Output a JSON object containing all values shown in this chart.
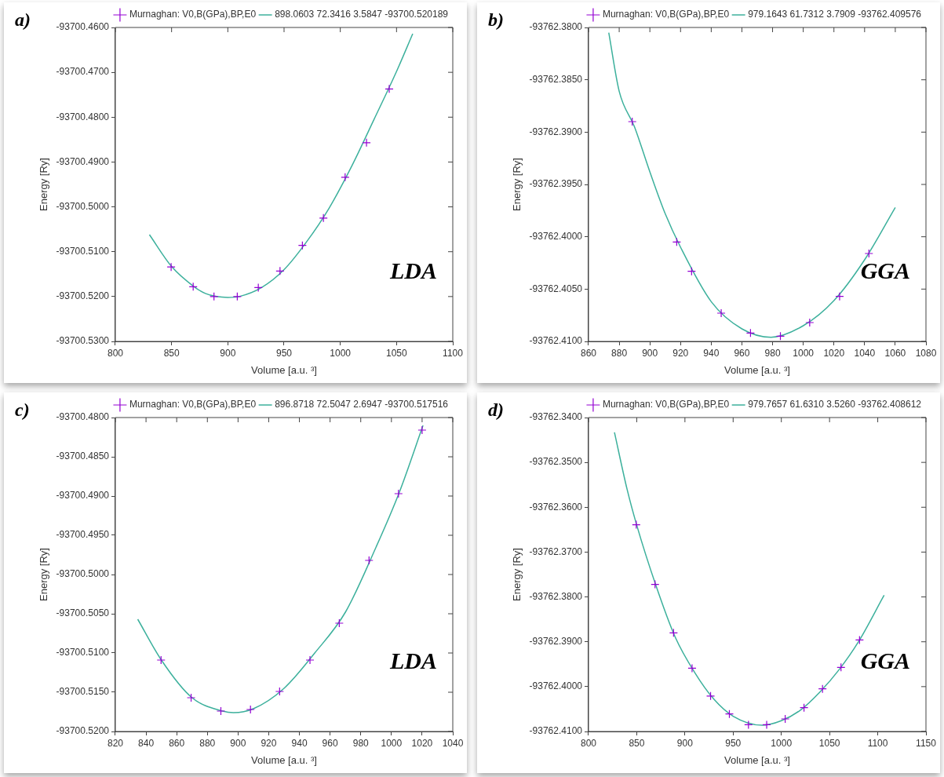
{
  "chart_data": [
    {
      "type": "scatter",
      "annotations": [
        "a)",
        "LDA"
      ],
      "xlabel": "Volume [a.u. ³]",
      "ylabel": "Energy [Ry]",
      "legend": "top right",
      "marker": "cross",
      "xlim": [
        800,
        1100
      ],
      "xticks": [
        800,
        850,
        900,
        950,
        1000,
        1050,
        1100
      ],
      "ylim": [
        -93700.53,
        -93700.46
      ],
      "yticks": [
        {
          "value": -93700.53,
          "label": "-93700.5300"
        },
        {
          "value": -93700.52,
          "label": "-93700.5200"
        },
        {
          "value": -93700.51,
          "label": "-93700.5100"
        },
        {
          "value": -93700.5,
          "label": "-93700.5000"
        },
        {
          "value": -93700.49,
          "label": "-93700.4900"
        },
        {
          "value": -93700.48,
          "label": "-93700.4800"
        },
        {
          "value": -93700.47,
          "label": "-93700.4700"
        },
        {
          "value": -93700.46,
          "label": "-93700.4600"
        }
      ],
      "series": [
        {
          "name": "Murnaghan: V0,B(GPa),BP,E0",
          "color": "#9400d3",
          "x": [
            849.6,
            869.2,
            887.7,
            908.4,
            927.1,
            946.4,
            966.3,
            985,
            1004.3,
            1023.3,
            1043.5
          ],
          "values": [
            -93700.5134,
            -93700.5178,
            -93700.52,
            -93700.52,
            -93700.518,
            -93700.5143,
            -93700.5086,
            -93700.5025,
            -93700.4934,
            -93700.4857,
            -93700.4737
          ]
        },
        {
          "type": "line",
          "marker": "none",
          "name": "898.0603 72.3416 3.5847 -93700.520189",
          "color": "#3cb09c",
          "x": [
            830.3,
            850,
            870,
            880,
            890,
            900,
            910,
            930,
            950,
            970,
            990,
            1010,
            1030,
            1050,
            1064.4
          ],
          "values": [
            -93700.5062,
            -93700.5133,
            -93700.5178,
            -93700.5193,
            -93700.52,
            -93700.5202,
            -93700.52,
            -93700.518,
            -93700.514,
            -93700.5078,
            -93700.5003,
            -93700.491,
            -93700.4805,
            -93700.4698,
            -93700.4614
          ]
        }
      ]
    },
    {
      "type": "scatter",
      "annotations": [
        "b)",
        "GGA"
      ],
      "xlabel": "Volume [a.u. ³]",
      "ylabel": "Energy [Ry]",
      "legend": "top right",
      "marker": "cross",
      "xlim": [
        860,
        1080
      ],
      "xticks": [
        860,
        880,
        900,
        920,
        940,
        960,
        980,
        1000,
        1020,
        1040,
        1060,
        1080
      ],
      "ylim": [
        -93762.41,
        -93762.38
      ],
      "yticks": [
        {
          "value": -93762.41,
          "label": "-93762.4100"
        },
        {
          "value": -93762.405,
          "label": "-93762.4050"
        },
        {
          "value": -93762.4,
          "label": "-93762.4000"
        },
        {
          "value": -93762.395,
          "label": "-93762.3950"
        },
        {
          "value": -93762.39,
          "label": "-93762.3900"
        },
        {
          "value": -93762.385,
          "label": "-93762.3850"
        },
        {
          "value": -93762.38,
          "label": "-93762.3800"
        }
      ],
      "series": [
        {
          "name": "Murnaghan: V0,B(GPa),BP,E0",
          "color": "#9400d3",
          "x": [
            888.5,
            917.5,
            927.2,
            946.5,
            965.6,
            985.1,
            1004.2,
            1023.7,
            1042.8
          ],
          "values": [
            -93762.389,
            -93762.4005,
            -93762.4033,
            -93762.4073,
            -93762.4092,
            -93762.4095,
            -93762.4082,
            -93762.4057,
            -93762.4016
          ]
        },
        {
          "type": "line",
          "marker": "none",
          "name": "979.1643 61.7312 3.7909 -93762.409576",
          "color": "#3cb09c",
          "x": [
            873.2,
            880,
            890,
            900,
            910,
            920,
            940,
            960,
            979,
            1000,
            1020,
            1040,
            1060
          ],
          "values": [
            -93762.3805,
            -93762.3861,
            -93762.3895,
            -93762.3938,
            -93762.3978,
            -93762.401,
            -93762.4062,
            -93762.4088,
            -93762.4096,
            -93762.4085,
            -93762.4061,
            -93762.4022,
            -93762.3972
          ]
        }
      ]
    },
    {
      "type": "scatter",
      "annotations": [
        "c)",
        "LDA"
      ],
      "xlabel": "Volume [a.u. ³]",
      "ylabel": "Energy [Ry]",
      "legend": "top right",
      "marker": "cross",
      "xlim": [
        820,
        1040
      ],
      "xticks": [
        820,
        840,
        860,
        880,
        900,
        920,
        940,
        960,
        980,
        1000,
        1020,
        1040
      ],
      "ylim": [
        -93700.52,
        -93700.48
      ],
      "yticks": [
        {
          "value": -93700.52,
          "label": "-93700.5200"
        },
        {
          "value": -93700.515,
          "label": "-93700.5150"
        },
        {
          "value": -93700.51,
          "label": "-93700.5100"
        },
        {
          "value": -93700.505,
          "label": "-93700.5050"
        },
        {
          "value": -93700.5,
          "label": "-93700.5000"
        },
        {
          "value": -93700.495,
          "label": "-93700.4950"
        },
        {
          "value": -93700.49,
          "label": "-93700.4900"
        },
        {
          "value": -93700.485,
          "label": "-93700.4850"
        },
        {
          "value": -93700.48,
          "label": "-93700.4800"
        }
      ],
      "series": [
        {
          "name": "Murnaghan: V0,B(GPa),BP,E0",
          "color": "#9400d3",
          "x": [
            849.8,
            869.4,
            888.8,
            908.1,
            927.1,
            946.9,
            966,
            985.4,
            1004.6,
            1020
          ],
          "values": [
            -93700.5109,
            -93700.5157,
            -93700.5174,
            -93700.5172,
            -93700.5149,
            -93700.5109,
            -93700.5062,
            -93700.4982,
            -93700.4897,
            -93700.4816
          ]
        },
        {
          "type": "line",
          "marker": "none",
          "name": "896.8718 72.5047 2.6947 -93700.517516",
          "color": "#3cb09c",
          "x": [
            834.6,
            850,
            870,
            890,
            897,
            910,
            930,
            950,
            970,
            990,
            1005,
            1020.6
          ],
          "values": [
            -93700.5057,
            -93700.5109,
            -93700.5157,
            -93700.5174,
            -93700.5176,
            -93700.5171,
            -93700.5145,
            -93700.51,
            -93700.5048,
            -93700.4965,
            -93700.4896,
            -93700.481
          ]
        }
      ]
    },
    {
      "type": "scatter",
      "annotations": [
        "d)",
        "GGA"
      ],
      "xlabel": "Volume [a.u. ³]",
      "ylabel": "Energy [Ry]",
      "legend": "top right",
      "marker": "cross",
      "xlim": [
        800,
        1150
      ],
      "xticks": [
        800,
        850,
        900,
        950,
        1000,
        1050,
        1100,
        1150
      ],
      "ylim": [
        -93762.41,
        -93762.34
      ],
      "yticks": [
        {
          "value": -93762.41,
          "label": "-93762.4100"
        },
        {
          "value": -93762.4,
          "label": "-93762.4000"
        },
        {
          "value": -93762.39,
          "label": "-93762.3900"
        },
        {
          "value": -93762.38,
          "label": "-93762.3800"
        },
        {
          "value": -93762.37,
          "label": "-93762.3700"
        },
        {
          "value": -93762.36,
          "label": "-93762.3600"
        },
        {
          "value": -93762.35,
          "label": "-93762.3500"
        },
        {
          "value": -93762.34,
          "label": "-93762.3400"
        }
      ],
      "series": [
        {
          "name": "Murnaghan: V0,B(GPa),BP,E0",
          "color": "#9400d3",
          "x": [
            849.5,
            869,
            888.2,
            907.4,
            926.6,
            946.1,
            965.9,
            984.8,
            1004,
            1023.5,
            1042.7,
            1061.9,
            1081.1
          ],
          "values": [
            -93762.3639,
            -93762.3772,
            -93762.388,
            -93762.3959,
            -93762.4021,
            -93762.4061,
            -93762.4085,
            -93762.4085,
            -93762.4072,
            -93762.4047,
            -93762.4005,
            -93762.3957,
            -93762.3896
          ]
        },
        {
          "type": "line",
          "marker": "none",
          "name": "979.7657 61.6310 3.5260 -93762.408612",
          "color": "#3cb09c",
          "x": [
            826.9,
            840,
            850,
            870,
            890,
            910,
            930,
            950,
            980,
            1000,
            1020,
            1040,
            1060,
            1080,
            1106.6
          ],
          "values": [
            -93762.3433,
            -93762.356,
            -93762.364,
            -93762.3775,
            -93762.389,
            -93762.3968,
            -93762.4028,
            -93762.4066,
            -93762.4086,
            -93762.4076,
            -93762.4052,
            -93762.4012,
            -93762.3962,
            -93762.39,
            -93762.3796
          ]
        }
      ]
    }
  ]
}
